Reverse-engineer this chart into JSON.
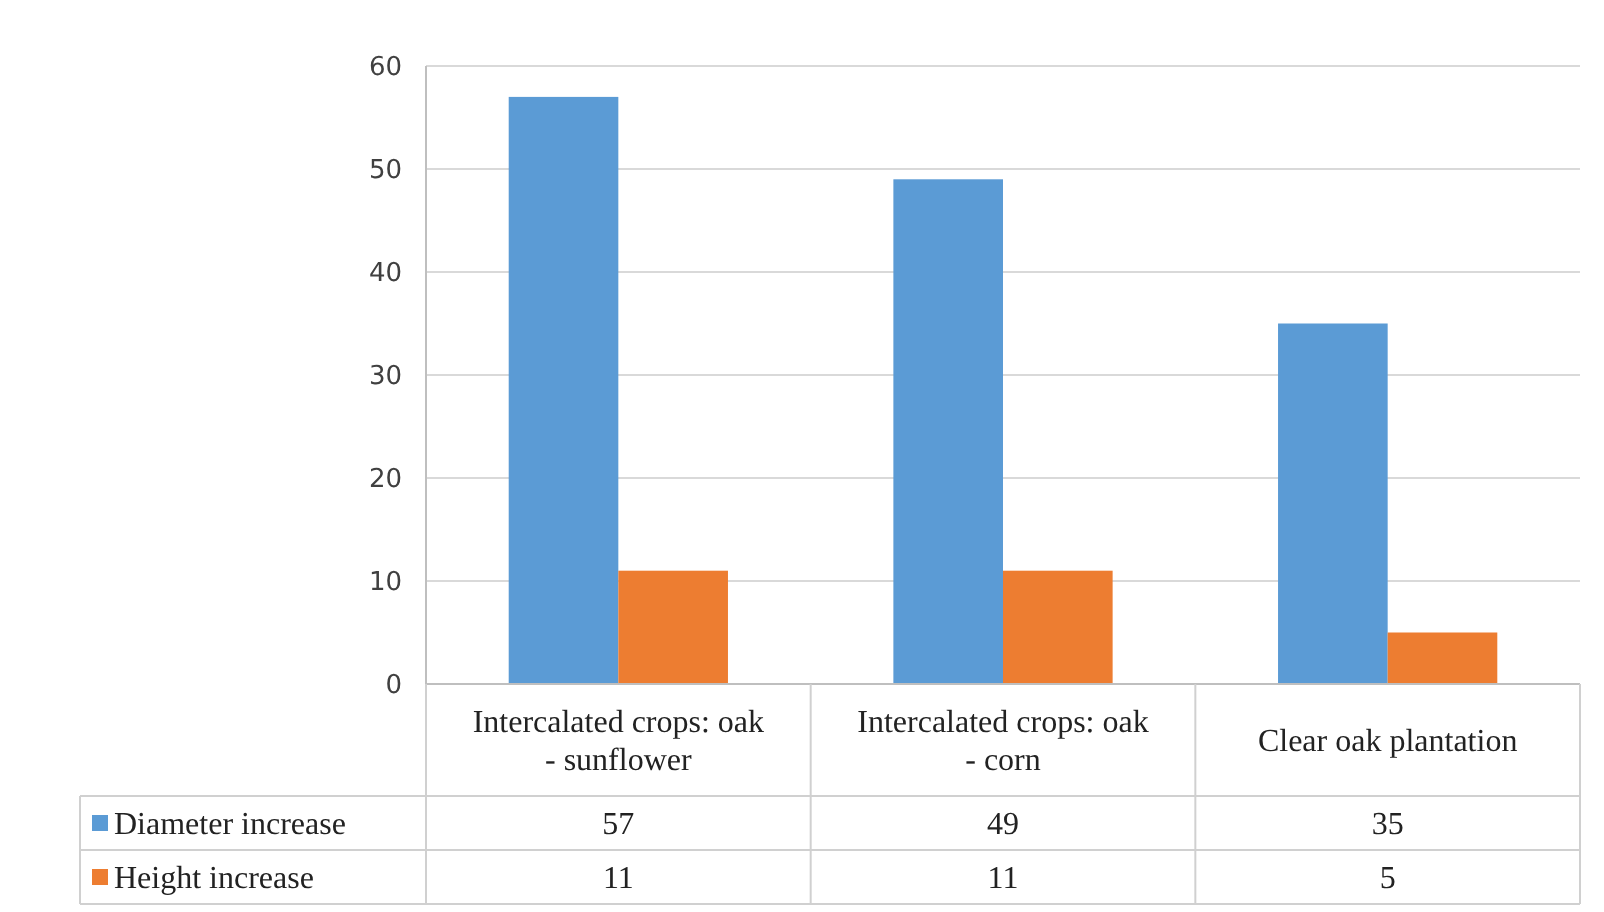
{
  "chart_data": {
    "type": "bar",
    "categories": [
      "Intercalated crops: oak - sunflower",
      "Intercalated crops: oak - corn",
      "Clear oak plantation"
    ],
    "series": [
      {
        "name": "Diameter increase",
        "color": "#5b9bd5",
        "values": [
          57,
          49,
          35
        ]
      },
      {
        "name": "Height increase",
        "color": "#ed7d31",
        "values": [
          11,
          11,
          5
        ]
      }
    ],
    "ylim": [
      0,
      60
    ],
    "yticks": [
      0,
      10,
      20,
      30,
      40,
      50,
      60
    ],
    "grid": "y",
    "legend": "bottom",
    "data_labels": true
  }
}
